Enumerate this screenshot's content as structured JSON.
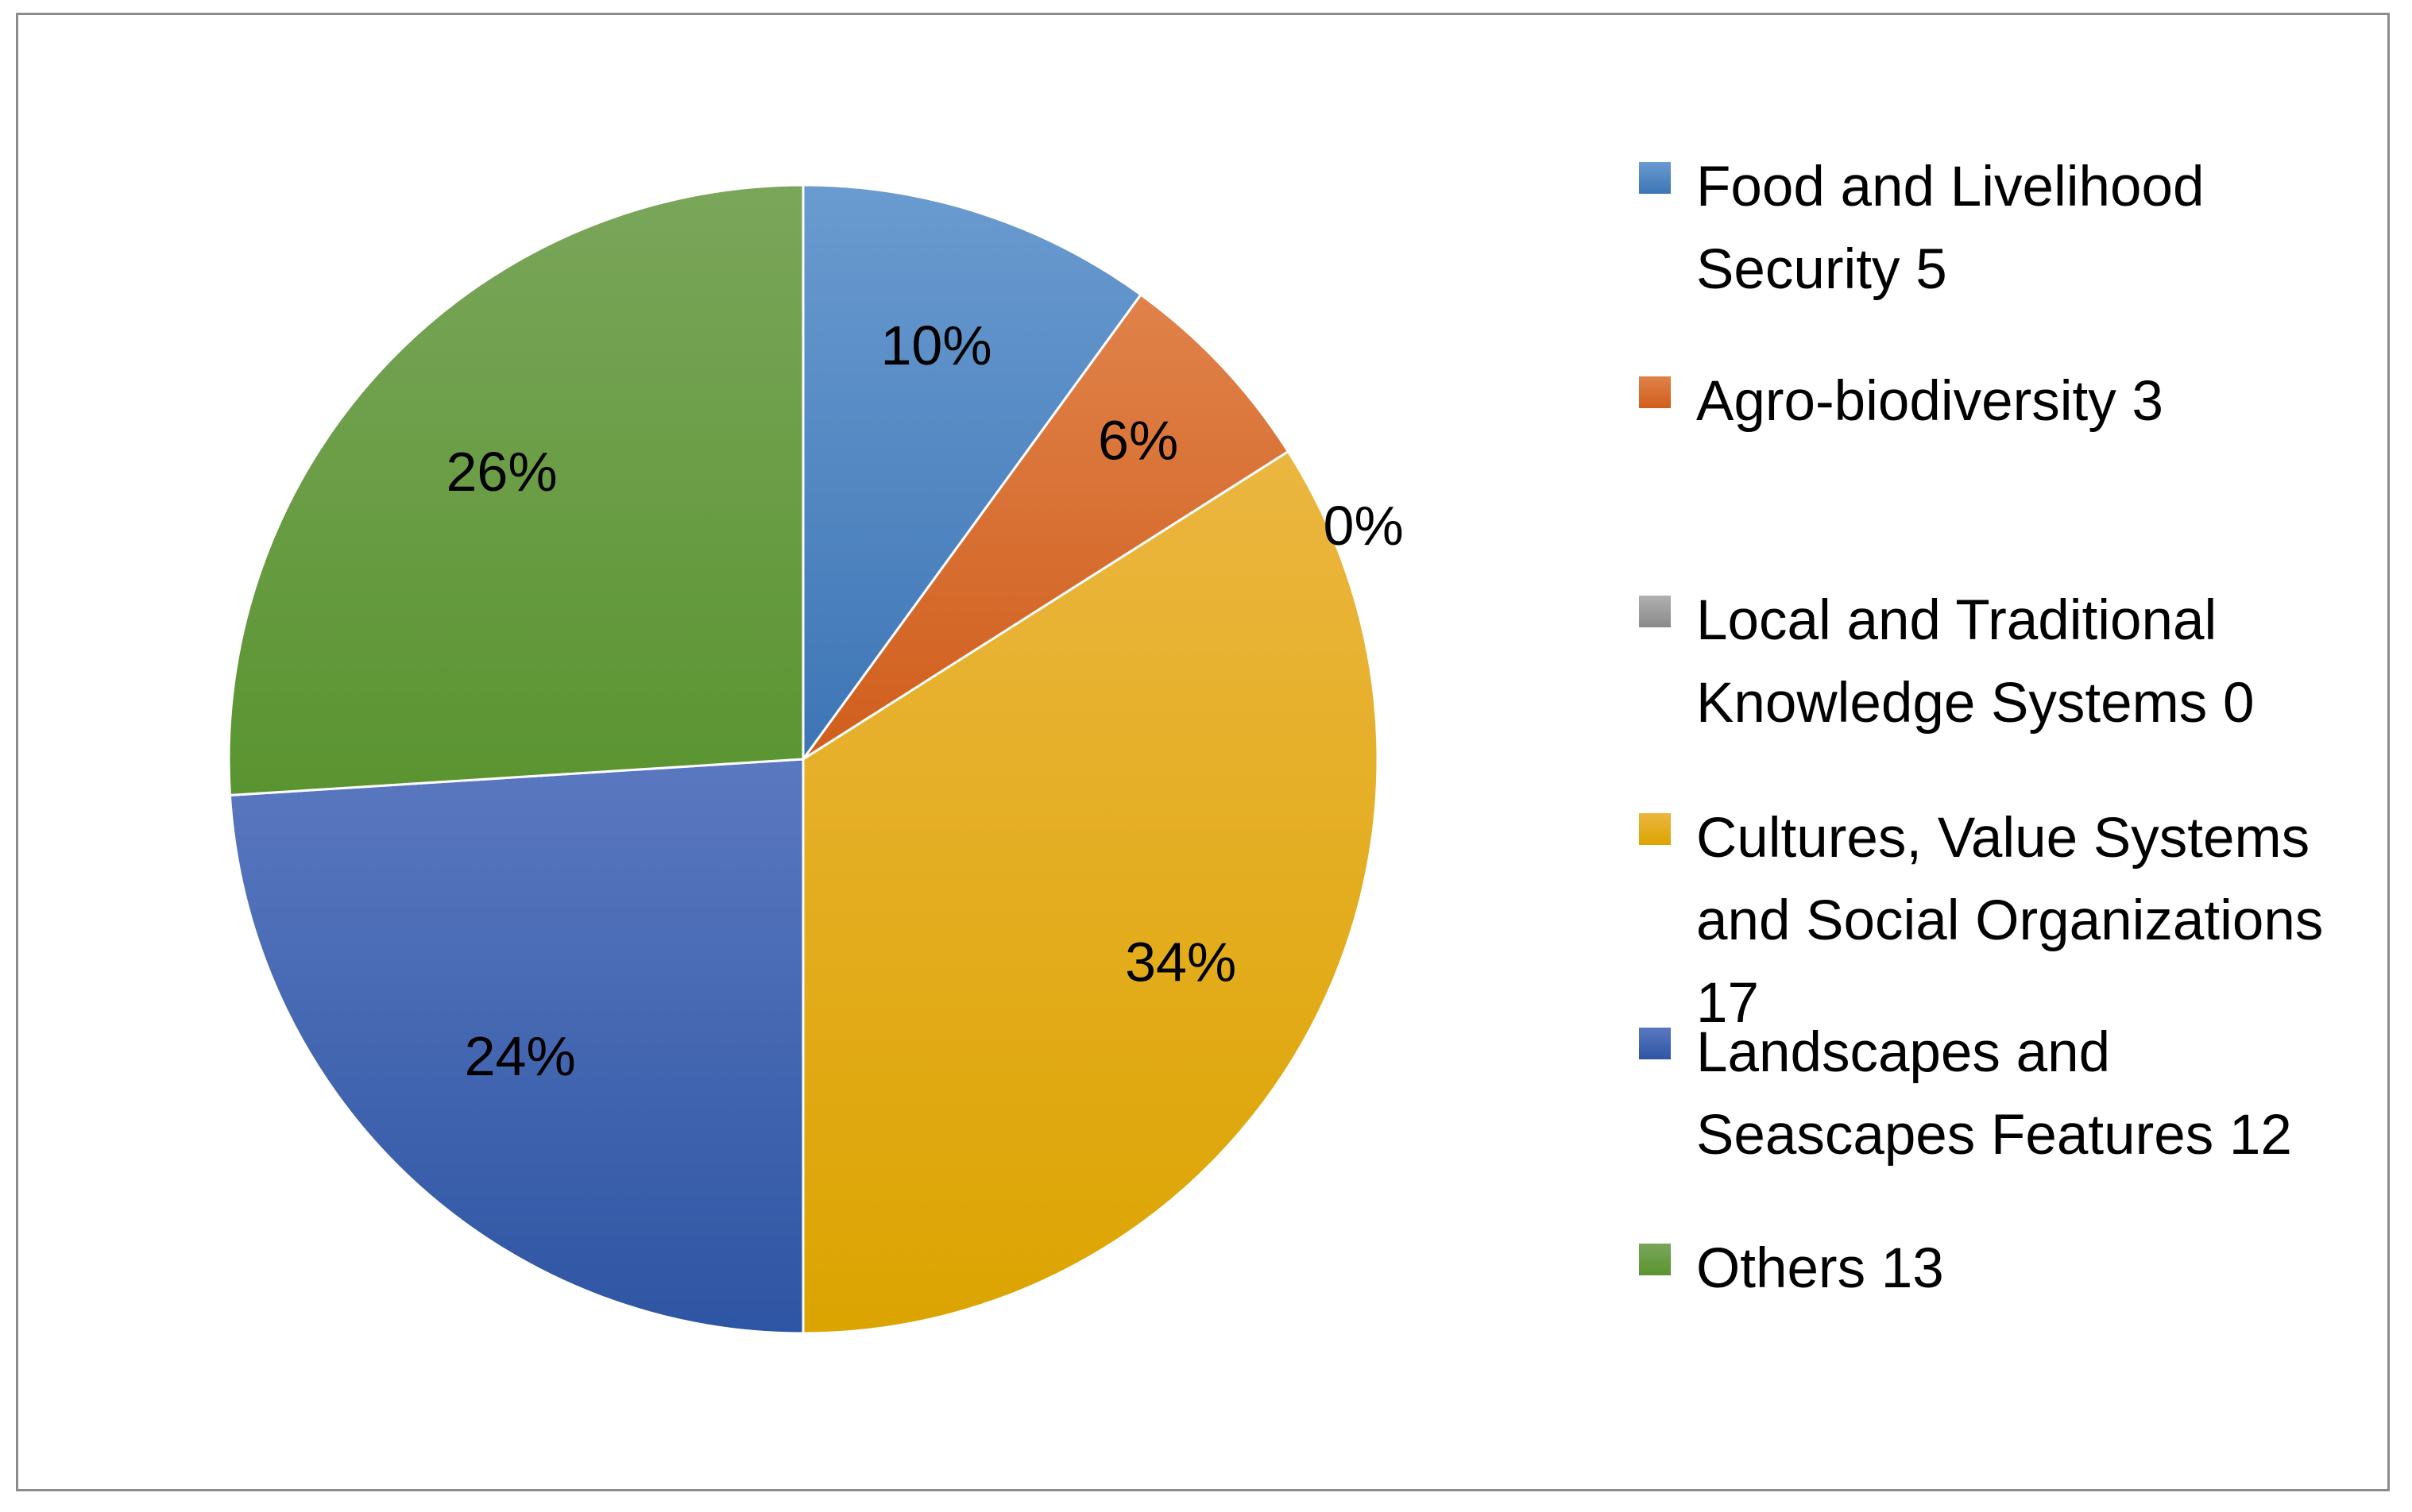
{
  "chart_data": {
    "type": "pie",
    "title": "",
    "slices": [
      {
        "label": "Food and Livelihood Security 5",
        "value": 5,
        "percent_label": "10%",
        "color": "#4a86c5",
        "color_light": "#6a9bd0",
        "color_dark": "#3d75b5"
      },
      {
        "label": "Agro-biodiversity 3",
        "value": 3,
        "percent_label": "6%",
        "color": "#dc6a28",
        "color_light": "#e0824a",
        "color_dark": "#d05e1c"
      },
      {
        "label": "Local and Traditional Knowledge Systems 0",
        "value": 0,
        "percent_label": "0%",
        "color": "#9e9e9e",
        "color_light": "#b0b0b0",
        "color_dark": "#8a8a8a"
      },
      {
        "label": "Cultures, Value Systems and Social Organizations 17",
        "value": 17,
        "percent_label": "34%",
        "color": "#edb10e",
        "color_light": "#ebb640",
        "color_dark": "#dca400"
      },
      {
        "label": "Landscapes and Seascapes Features 12",
        "value": 12,
        "percent_label": "24%",
        "color": "#3b64b5",
        "color_light": "#5a78c0",
        "color_dark": "#2e55a3"
      },
      {
        "label": "Others 13",
        "value": 13,
        "percent_label": "26%",
        "color": "#62a03a",
        "color_light": "#7aa65a",
        "color_dark": "#5a9430"
      }
    ],
    "legend_position": "right"
  }
}
